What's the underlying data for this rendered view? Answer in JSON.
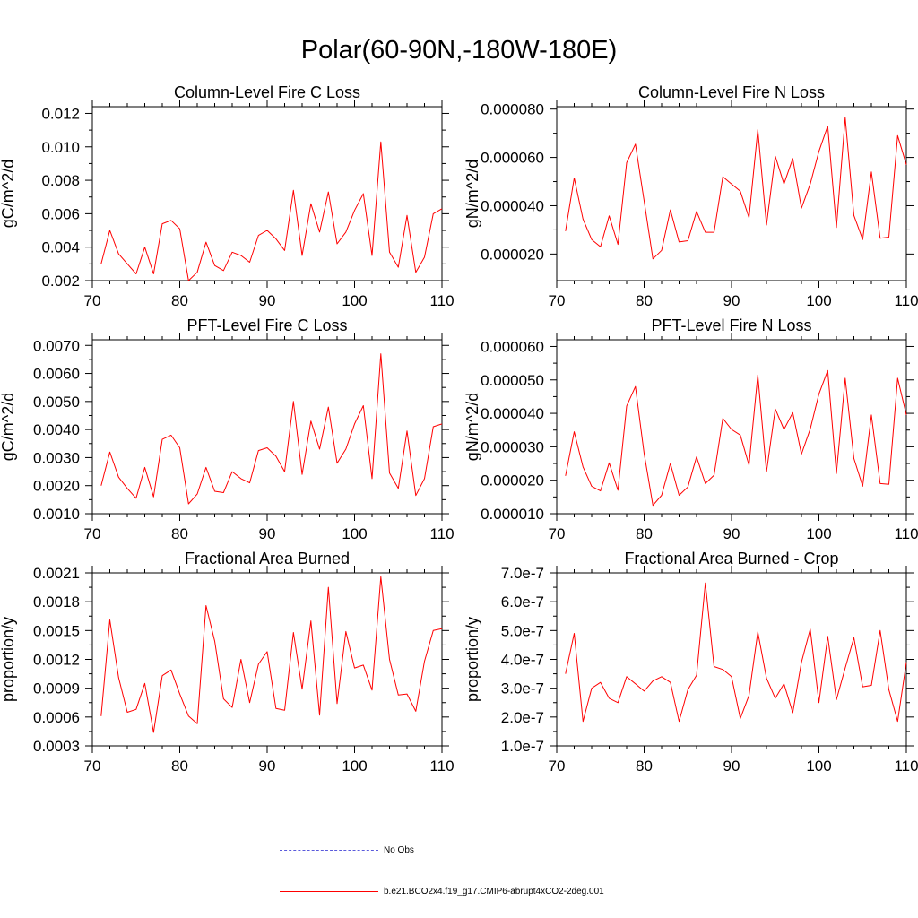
{
  "page": {
    "title": "Polar(60-90N,-180W-180E)"
  },
  "legend": {
    "items": [
      {
        "label": "No Obs",
        "color": "#5a5adc",
        "style": "dashed"
      },
      {
        "label": "b.e21.BCO2x4.f19_g17.CMIP6-abrupt4xCO2-2deg.001",
        "color": "#ff0000",
        "style": "solid"
      }
    ]
  },
  "chart_data": [
    {
      "type": "line",
      "title": "Column-Level Fire C Loss",
      "ylabel": "gC/m^2/d",
      "xlabel": "",
      "xlim": [
        70,
        110
      ],
      "ylim": [
        0.002,
        0.0124
      ],
      "xticks": [
        70,
        80,
        90,
        100,
        110
      ],
      "yticks": [
        0.002,
        0.004,
        0.006,
        0.008,
        0.01,
        0.012
      ],
      "ytick_labels": [
        "0.002",
        "0.004",
        "0.006",
        "0.008",
        "0.010",
        "0.012"
      ],
      "series": [
        {
          "name": "b.e21.BCO2x4.f19_g17.CMIP6-abrupt4xCO2-2deg.001",
          "color": "#ff0000",
          "x": [
            71,
            72,
            73,
            74,
            75,
            76,
            77,
            78,
            79,
            80,
            81,
            82,
            83,
            84,
            85,
            86,
            87,
            88,
            89,
            90,
            91,
            92,
            93,
            94,
            95,
            96,
            97,
            98,
            99,
            100,
            101,
            102,
            103,
            104,
            105,
            106,
            107,
            108,
            109,
            110
          ],
          "values": [
            0.003,
            0.005,
            0.0036,
            0.003,
            0.0024,
            0.004,
            0.0024,
            0.0054,
            0.0056,
            0.0051,
            0.002,
            0.0025,
            0.0043,
            0.0029,
            0.0026,
            0.0037,
            0.0035,
            0.0031,
            0.0047,
            0.005,
            0.0045,
            0.0038,
            0.0074,
            0.0035,
            0.0066,
            0.0049,
            0.0073,
            0.0042,
            0.0049,
            0.0062,
            0.0072,
            0.0035,
            0.0103,
            0.0037,
            0.0028,
            0.0059,
            0.0025,
            0.0034,
            0.006,
            0.0063
          ]
        }
      ]
    },
    {
      "type": "line",
      "title": "Column-Level Fire N Loss",
      "ylabel": "gN/m^2/d",
      "xlabel": "",
      "xlim": [
        70,
        110
      ],
      "ylim": [
        9e-06,
        8.1e-05
      ],
      "xticks": [
        70,
        80,
        90,
        100,
        110
      ],
      "yticks": [
        2e-05,
        4e-05,
        6e-05,
        8e-05
      ],
      "ytick_labels": [
        "0.000020",
        "0.000040",
        "0.000060",
        "0.000080"
      ],
      "series": [
        {
          "name": "b.e21.BCO2x4.f19_g17.CMIP6-abrupt4xCO2-2deg.001",
          "color": "#ff0000",
          "x": [
            71,
            72,
            73,
            74,
            75,
            76,
            77,
            78,
            79,
            80,
            81,
            82,
            83,
            84,
            85,
            86,
            87,
            88,
            89,
            90,
            91,
            92,
            93,
            94,
            95,
            96,
            97,
            98,
            99,
            100,
            101,
            102,
            103,
            104,
            105,
            106,
            107,
            108,
            109,
            110
          ],
          "values": [
            2.95e-05,
            5.15e-05,
            3.45e-05,
            2.6e-05,
            2.3e-05,
            3.58e-05,
            2.4e-05,
            5.78e-05,
            6.55e-05,
            4.2e-05,
            1.8e-05,
            2.15e-05,
            3.83e-05,
            2.5e-05,
            2.55e-05,
            3.76e-05,
            2.9e-05,
            2.9e-05,
            5.2e-05,
            4.9e-05,
            4.6e-05,
            3.5e-05,
            7.15e-05,
            3.2e-05,
            6.05e-05,
            4.9e-05,
            5.95e-05,
            3.9e-05,
            4.9e-05,
            6.25e-05,
            7.3e-05,
            3.1e-05,
            7.65e-05,
            3.6e-05,
            2.6e-05,
            5.4e-05,
            2.65e-05,
            2.7e-05,
            6.9e-05,
            5.7e-05
          ]
        }
      ]
    },
    {
      "type": "line",
      "title": "PFT-Level Fire C Loss",
      "ylabel": "gC/m^2/d",
      "xlabel": "",
      "xlim": [
        70,
        110
      ],
      "ylim": [
        0.001,
        0.0072
      ],
      "xticks": [
        70,
        80,
        90,
        100,
        110
      ],
      "yticks": [
        0.001,
        0.002,
        0.003,
        0.004,
        0.005,
        0.006,
        0.007
      ],
      "ytick_labels": [
        "0.0010",
        "0.0020",
        "0.0030",
        "0.0040",
        "0.0050",
        "0.0060",
        "0.0070"
      ],
      "series": [
        {
          "name": "b.e21.BCO2x4.f19_g17.CMIP6-abrupt4xCO2-2deg.001",
          "color": "#ff0000",
          "x": [
            71,
            72,
            73,
            74,
            75,
            76,
            77,
            78,
            79,
            80,
            81,
            82,
            83,
            84,
            85,
            86,
            87,
            88,
            89,
            90,
            91,
            92,
            93,
            94,
            95,
            96,
            97,
            98,
            99,
            100,
            101,
            102,
            103,
            104,
            105,
            106,
            107,
            108,
            109,
            110
          ],
          "values": [
            0.002,
            0.0032,
            0.0023,
            0.0019,
            0.00155,
            0.00265,
            0.0016,
            0.00365,
            0.0038,
            0.00335,
            0.00135,
            0.0017,
            0.00265,
            0.0018,
            0.00175,
            0.0025,
            0.00225,
            0.0021,
            0.00325,
            0.00335,
            0.00305,
            0.0025,
            0.005,
            0.0024,
            0.0043,
            0.0033,
            0.0048,
            0.0028,
            0.0033,
            0.0042,
            0.00485,
            0.00225,
            0.0067,
            0.00245,
            0.0019,
            0.00395,
            0.00165,
            0.00225,
            0.0041,
            0.0042
          ]
        }
      ]
    },
    {
      "type": "line",
      "title": "PFT-Level Fire N Loss",
      "ylabel": "gN/m^2/d",
      "xlabel": "",
      "xlim": [
        70,
        110
      ],
      "ylim": [
        1e-05,
        6.2e-05
      ],
      "xticks": [
        70,
        80,
        90,
        100,
        110
      ],
      "yticks": [
        1e-05,
        2e-05,
        3e-05,
        4e-05,
        5e-05,
        6e-05
      ],
      "ytick_labels": [
        "0.000010",
        "0.000020",
        "0.000030",
        "0.000040",
        "0.000050",
        "0.000060"
      ],
      "series": [
        {
          "name": "b.e21.BCO2x4.f19_g17.CMIP6-abrupt4xCO2-2deg.001",
          "color": "#ff0000",
          "x": [
            71,
            72,
            73,
            74,
            75,
            76,
            77,
            78,
            79,
            80,
            81,
            82,
            83,
            84,
            85,
            86,
            87,
            88,
            89,
            90,
            91,
            92,
            93,
            94,
            95,
            96,
            97,
            98,
            99,
            100,
            101,
            102,
            103,
            104,
            105,
            106,
            107,
            108,
            109,
            110
          ],
          "values": [
            2.13e-05,
            3.45e-05,
            2.4e-05,
            1.82e-05,
            1.68e-05,
            2.52e-05,
            1.7e-05,
            4.22e-05,
            4.8e-05,
            2.8e-05,
            1.25e-05,
            1.55e-05,
            2.5e-05,
            1.55e-05,
            1.8e-05,
            2.7e-05,
            1.9e-05,
            2.15e-05,
            3.85e-05,
            3.52e-05,
            3.35e-05,
            2.45e-05,
            5.15e-05,
            2.25e-05,
            4.13e-05,
            3.52e-05,
            4.02e-05,
            2.78e-05,
            3.53e-05,
            4.58e-05,
            5.28e-05,
            2.2e-05,
            5.05e-05,
            2.65e-05,
            1.82e-05,
            3.95e-05,
            1.9e-05,
            1.88e-05,
            5.05e-05,
            3.95e-05
          ]
        }
      ]
    },
    {
      "type": "line",
      "title": "Fractional Area Burned",
      "ylabel": "proportion/y",
      "xlabel": "",
      "xlim": [
        70,
        110
      ],
      "ylim": [
        0.0003,
        0.0021
      ],
      "xticks": [
        70,
        80,
        90,
        100,
        110
      ],
      "yticks": [
        0.0003,
        0.0006,
        0.0009,
        0.0012,
        0.0015,
        0.0018,
        0.0021
      ],
      "ytick_labels": [
        "0.0003",
        "0.0006",
        "0.0009",
        "0.0012",
        "0.0015",
        "0.0018",
        "0.0021"
      ],
      "series": [
        {
          "name": "b.e21.BCO2x4.f19_g17.CMIP6-abrupt4xCO2-2deg.001",
          "color": "#ff0000",
          "x": [
            71,
            72,
            73,
            74,
            75,
            76,
            77,
            78,
            79,
            80,
            81,
            82,
            83,
            84,
            85,
            86,
            87,
            88,
            89,
            90,
            91,
            92,
            93,
            94,
            95,
            96,
            97,
            98,
            99,
            100,
            101,
            102,
            103,
            104,
            105,
            106,
            107,
            108,
            109,
            110
          ],
          "values": [
            0.00061,
            0.00161,
            0.00101,
            0.00065,
            0.00068,
            0.00095,
            0.00044,
            0.00103,
            0.00109,
            0.00084,
            0.00061,
            0.00053,
            0.00176,
            0.00139,
            0.00079,
            0.0007,
            0.0012,
            0.00075,
            0.00115,
            0.00128,
            0.00069,
            0.00067,
            0.00148,
            0.00089,
            0.0016,
            0.00062,
            0.00195,
            0.00074,
            0.00149,
            0.00111,
            0.00114,
            0.00088,
            0.00206,
            0.0012,
            0.00083,
            0.00084,
            0.00066,
            0.00118,
            0.0015,
            0.00152
          ]
        }
      ]
    },
    {
      "type": "line",
      "title": "Fractional Area Burned - Crop",
      "ylabel": "proportion/y",
      "xlabel": "",
      "xlim": [
        70,
        110
      ],
      "ylim": [
        1e-07,
        7e-07
      ],
      "xticks": [
        70,
        80,
        90,
        100,
        110
      ],
      "yticks": [
        1e-07,
        2e-07,
        3e-07,
        4e-07,
        5e-07,
        6e-07,
        7e-07
      ],
      "ytick_labels": [
        "1.0e-7",
        "2.0e-7",
        "3.0e-7",
        "4.0e-7",
        "5.0e-7",
        "6.0e-7",
        "7.0e-7"
      ],
      "series": [
        {
          "name": "b.e21.BCO2x4.f19_g17.CMIP6-abrupt4xCO2-2deg.001",
          "color": "#ff0000",
          "x": [
            71,
            72,
            73,
            74,
            75,
            76,
            77,
            78,
            79,
            80,
            81,
            82,
            83,
            84,
            85,
            86,
            87,
            88,
            89,
            90,
            91,
            92,
            93,
            94,
            95,
            96,
            97,
            98,
            99,
            100,
            101,
            102,
            103,
            104,
            105,
            106,
            107,
            108,
            109,
            110
          ],
          "values": [
            3.5e-07,
            4.9e-07,
            1.85e-07,
            3e-07,
            3.2e-07,
            2.65e-07,
            2.5e-07,
            3.4e-07,
            3.15e-07,
            2.9e-07,
            3.25e-07,
            3.4e-07,
            3.2e-07,
            1.85e-07,
            2.95e-07,
            3.45e-07,
            6.65e-07,
            3.75e-07,
            3.65e-07,
            3.4e-07,
            1.95e-07,
            2.75e-07,
            4.95e-07,
            3.35e-07,
            2.65e-07,
            3.15e-07,
            2.15e-07,
            3.9e-07,
            5.05e-07,
            2.5e-07,
            4.8e-07,
            2.6e-07,
            3.7e-07,
            4.75e-07,
            3.05e-07,
            3.1e-07,
            5e-07,
            2.95e-07,
            1.85e-07,
            3.9e-07
          ]
        }
      ]
    }
  ]
}
